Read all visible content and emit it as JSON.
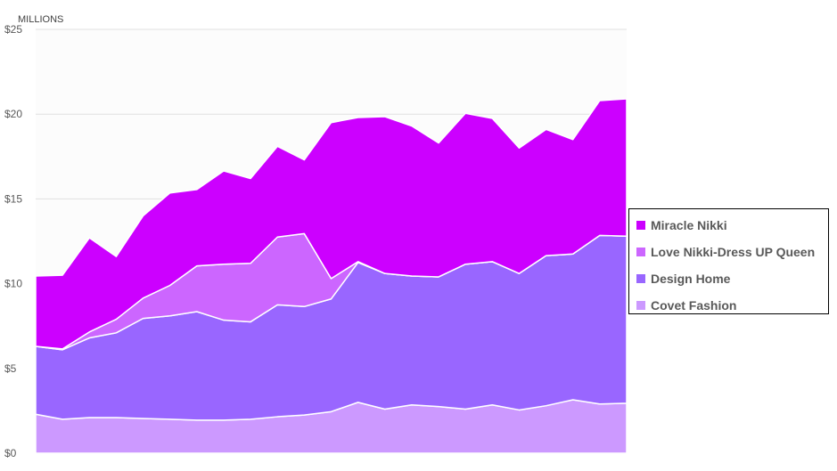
{
  "chart_data": {
    "type": "area",
    "stacked": true,
    "unit_label": "MILLIONS",
    "title": "",
    "xlabel": "",
    "ylabel": "",
    "ylim": [
      0,
      25
    ],
    "yticks": [
      "$0",
      "$5",
      "$10",
      "$15",
      "$20",
      "$25"
    ],
    "ytick_values": [
      0,
      5,
      10,
      15,
      20,
      25
    ],
    "grid": "horizontal",
    "legend_position": "right",
    "x": [
      1,
      2,
      3,
      4,
      5,
      6,
      7,
      8,
      9,
      10,
      11,
      12,
      13,
      14,
      15,
      16,
      17,
      18,
      19,
      20,
      21,
      22,
      23
    ],
    "series": [
      {
        "name": "Covet Fashion",
        "color": "#cc99ff",
        "values": [
          2.3,
          2.0,
          2.1,
          2.1,
          2.05,
          2.0,
          1.95,
          1.95,
          2.0,
          2.15,
          2.25,
          2.45,
          3.0,
          2.6,
          2.85,
          2.75,
          2.6,
          2.85,
          2.55,
          2.8,
          3.15,
          2.9,
          2.95
        ]
      },
      {
        "name": "Design Home",
        "color": "#9966ff",
        "values": [
          4.0,
          4.1,
          4.7,
          5.0,
          5.9,
          6.1,
          6.4,
          5.9,
          5.75,
          6.6,
          6.4,
          6.65,
          8.25,
          8.0,
          7.6,
          7.65,
          8.55,
          8.45,
          8.05,
          8.85,
          8.6,
          9.95,
          9.85
        ]
      },
      {
        "name": "Love Nikki-Dress UP Queen",
        "color": "#cc66ff",
        "values": [
          0.0,
          0.05,
          0.35,
          0.8,
          1.2,
          1.8,
          2.7,
          3.3,
          3.45,
          4.0,
          4.3,
          1.2,
          0.05,
          0.0,
          0.0,
          0.0,
          0.0,
          0.0,
          0.0,
          0.0,
          0.0,
          0.0,
          0.0
        ]
      },
      {
        "name": "Miracle Nikki",
        "color": "#cc00ff",
        "values": [
          4.15,
          4.35,
          5.55,
          3.7,
          4.85,
          5.45,
          4.5,
          5.5,
          5.0,
          5.35,
          4.35,
          9.2,
          8.5,
          9.25,
          8.85,
          7.9,
          8.9,
          8.45,
          7.4,
          7.45,
          6.75,
          7.95,
          8.1
        ]
      }
    ],
    "legend_order": [
      "Miracle Nikki",
      "Love Nikki-Dress UP Queen",
      "Design Home",
      "Covet Fashion"
    ]
  }
}
